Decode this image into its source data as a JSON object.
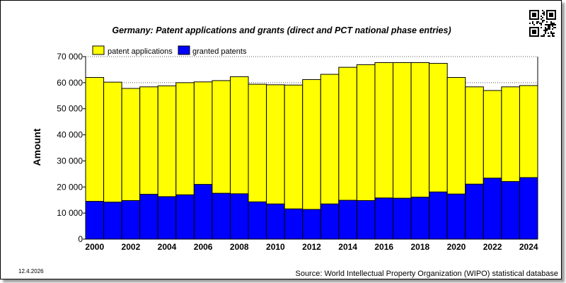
{
  "chart_data": {
    "type": "bar",
    "title": "Germany: Patent applications and grants (direct and PCT national phase entries)",
    "ylabel": "Amount",
    "ylim": [
      0,
      70000
    ],
    "yticks": [
      0,
      10000,
      20000,
      30000,
      40000,
      50000,
      60000,
      70000
    ],
    "ytick_labels": [
      "0",
      "10 000",
      "20 000",
      "30 000",
      "40 000",
      "50 000",
      "60 000",
      "70 000"
    ],
    "x": [
      2000,
      2001,
      2002,
      2003,
      2004,
      2005,
      2006,
      2007,
      2008,
      2009,
      2010,
      2011,
      2012,
      2013,
      2014,
      2015,
      2016,
      2017,
      2018,
      2019,
      2020,
      2021,
      2022,
      2023,
      2024
    ],
    "xtick_labels": [
      "2000",
      "2002",
      "2004",
      "2006",
      "2008",
      "2010",
      "2012",
      "2014",
      "2016",
      "2018",
      "2020",
      "2022",
      "2024"
    ],
    "series": [
      {
        "name": "patent applications",
        "color": "#ffff00",
        "values": [
          62000,
          60200,
          57800,
          58400,
          58800,
          60000,
          60300,
          60800,
          62300,
          59400,
          59200,
          59100,
          61200,
          63200,
          65900,
          66900,
          67700,
          67700,
          67700,
          67400,
          62000,
          58400,
          57000,
          58400,
          58900
        ]
      },
      {
        "name": "granted patents",
        "color": "#0000ff",
        "values": [
          14500,
          14200,
          14800,
          17200,
          16300,
          17000,
          21000,
          17600,
          17400,
          14300,
          13500,
          11600,
          11400,
          13500,
          14900,
          14800,
          15800,
          15700,
          16100,
          18100,
          17300,
          21100,
          23400,
          22100,
          23600
        ]
      }
    ],
    "grid": "dotted horizontal",
    "legend": "top-left"
  },
  "footer": {
    "date": "12.4.2026",
    "source": "Source: World Intellectual Property Organization (WIPO) statistical database"
  },
  "colors": {
    "background": "#ffffff",
    "axis": "#000000"
  }
}
